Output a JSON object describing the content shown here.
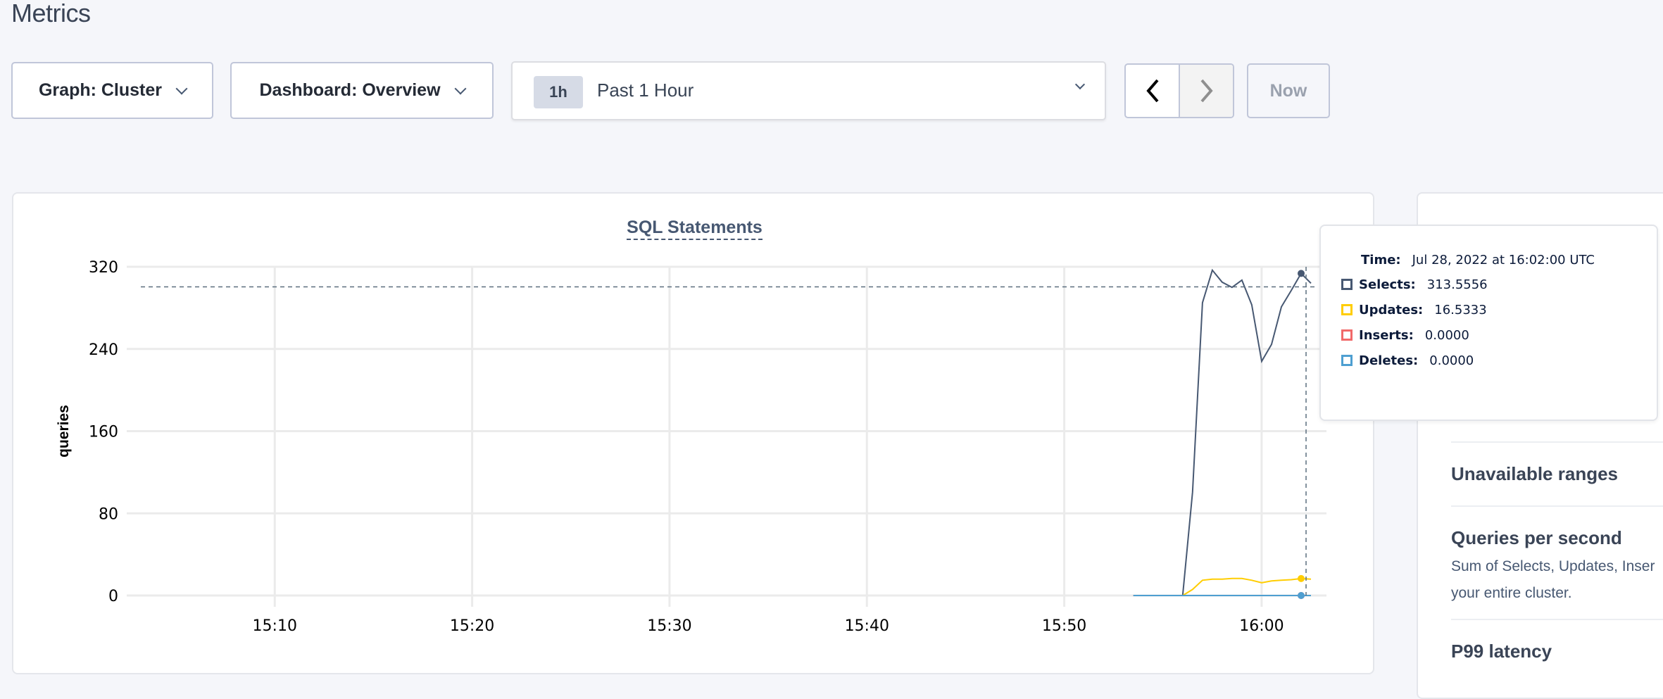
{
  "page": {
    "title": "Metrics"
  },
  "toolbar": {
    "graph_label": "Graph: Cluster",
    "dashboard_label": "Dashboard: Overview",
    "time_badge": "1h",
    "time_label": "Past 1 Hour",
    "prev_icon": "chevron-left-icon",
    "next_icon": "chevron-right-icon",
    "now_label": "Now"
  },
  "chart_data": {
    "type": "line",
    "title": "SQL Statements",
    "ylabel": "queries",
    "xlabel": "",
    "ylim": [
      0,
      320
    ],
    "yticks": [
      "0",
      "80",
      "160",
      "240",
      "320"
    ],
    "xlim": [
      "15:02:30",
      "16:03:17"
    ],
    "xticks": [
      "15:10",
      "15:20",
      "15:30",
      "15:40",
      "15:50",
      "16:00"
    ],
    "grid": true,
    "x": [
      "15:53:30",
      "15:54:00",
      "15:54:30",
      "15:55:00",
      "15:55:30",
      "15:56:00",
      "15:56:30",
      "15:57:00",
      "15:57:30",
      "15:58:00",
      "15:58:30",
      "15:59:00",
      "15:59:30",
      "16:00:00",
      "16:00:30",
      "16:01:00",
      "16:01:30",
      "16:02:00",
      "16:02:30"
    ],
    "series": [
      {
        "name": "Selects",
        "color": "#475872",
        "values": [
          0,
          0,
          0,
          0,
          0,
          0,
          100.6,
          285,
          316.7,
          305,
          300,
          307,
          283,
          228,
          244.5,
          281,
          297,
          313.5556,
          304
        ]
      },
      {
        "name": "Updates",
        "color": "#ffcd02",
        "values": [
          0,
          0,
          0,
          0,
          0,
          0,
          5.9,
          14.9,
          15.9,
          15.9,
          16.6,
          16.6,
          14.9,
          12.5,
          14.2,
          14.9,
          15.4,
          16.5333,
          15.9
        ]
      },
      {
        "name": "Inserts",
        "color": "#f16969",
        "values": [
          0,
          0,
          0,
          0,
          0,
          0,
          0,
          0,
          0,
          0,
          0,
          0,
          0,
          0,
          0,
          0,
          0,
          0,
          0
        ]
      },
      {
        "name": "Deletes",
        "color": "#4e9fd1",
        "values": [
          0,
          0,
          0,
          0,
          0,
          0,
          0,
          0,
          0,
          0,
          0,
          0,
          0,
          0,
          0,
          0,
          0,
          0,
          0
        ]
      }
    ],
    "hover_time": "16:02:00"
  },
  "tooltip": {
    "time_label": "Time:",
    "time_value": "Jul 28, 2022 at 16:02:00 UTC",
    "rows": [
      {
        "label": "Selects:",
        "value": "313.5556",
        "color": "#475872"
      },
      {
        "label": "Updates:",
        "value": "16.5333",
        "color": "#ffcd02"
      },
      {
        "label": "Inserts:",
        "value": "0.0000",
        "color": "#f16969"
      },
      {
        "label": "Deletes:",
        "value": "0.0000",
        "color": "#4e9fd1"
      }
    ]
  },
  "sidebar": {
    "items": [
      {
        "title": "Unavailable ranges"
      },
      {
        "title": "Queries per second",
        "description_lines": [
          "Sum of Selects, Updates, Inser",
          "your entire cluster."
        ]
      },
      {
        "title": "P99 latency"
      }
    ]
  }
}
